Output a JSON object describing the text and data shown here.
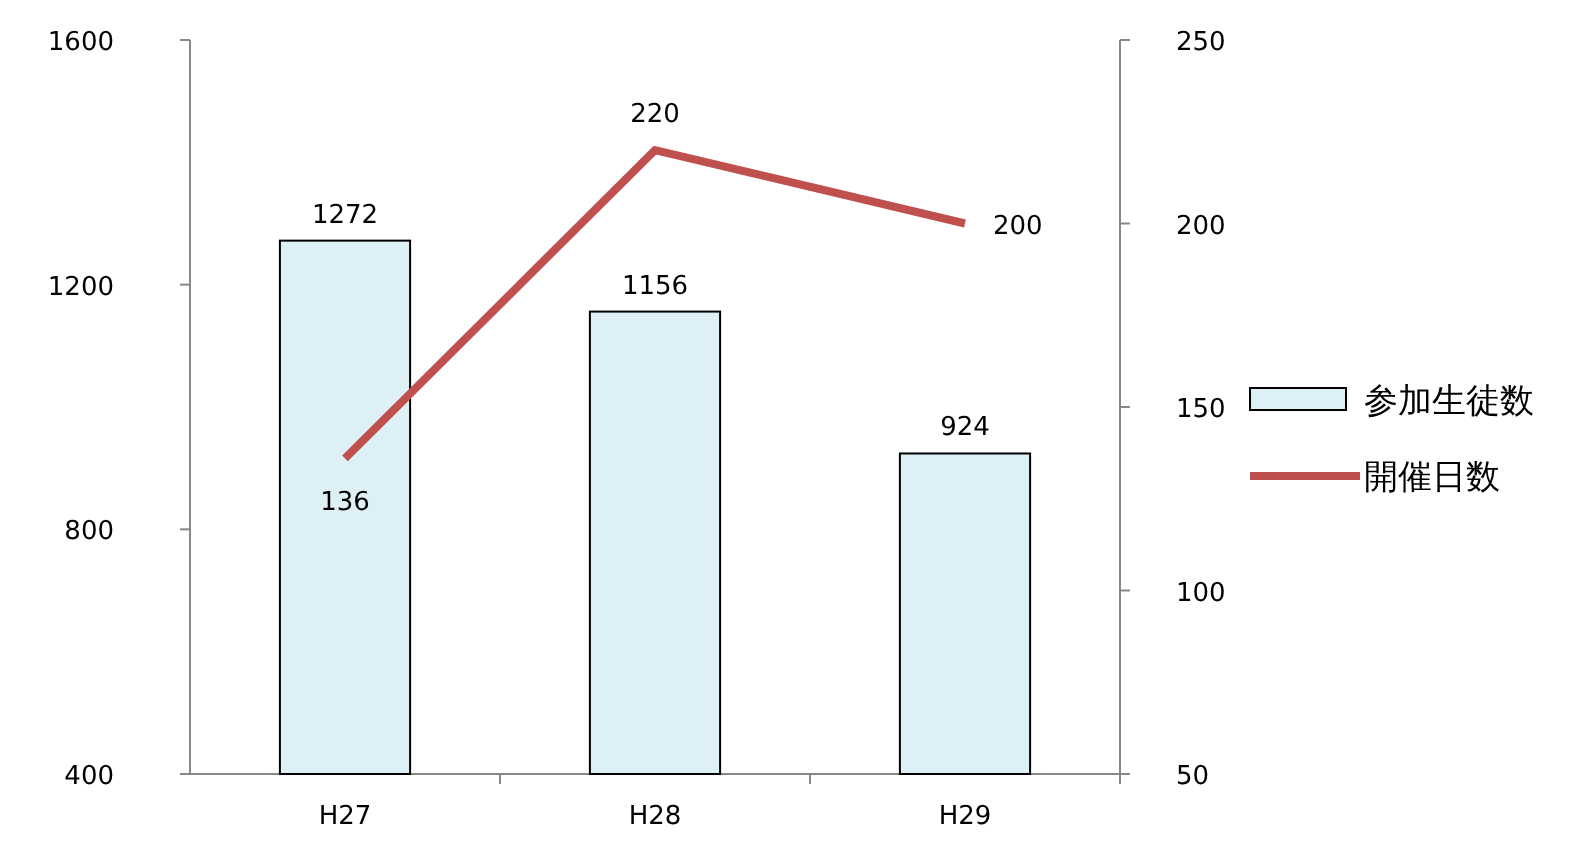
{
  "chart_data": {
    "type": "bar",
    "categories": [
      "H27",
      "H28",
      "H29"
    ],
    "series": [
      {
        "name": "参加生徒数",
        "color": "#ddf0f5",
        "values": [
          1272,
          1156,
          924
        ]
      },
      {
        "name": "開催日数",
        "type": "line",
        "axis": "y2",
        "color": "#c0504d",
        "values": [
          136,
          220,
          200
        ]
      }
    ],
    "ylim": [
      400,
      1600
    ],
    "yticks": [
      400,
      800,
      1200,
      1600
    ],
    "y2lim": [
      50,
      250
    ],
    "y2ticks": [
      50,
      100,
      150,
      200,
      250
    ],
    "data_labels": true,
    "legend": "right",
    "grid": false,
    "marker": "none",
    "line_style": "solid"
  }
}
